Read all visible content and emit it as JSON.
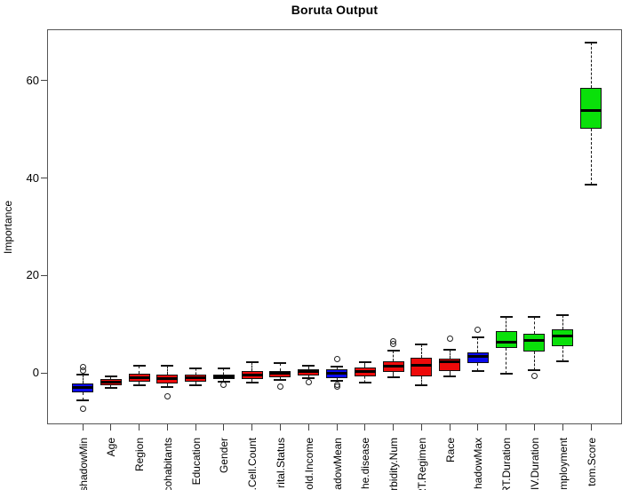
{
  "chart_data": {
    "type": "boxplot",
    "title": "Boruta Output",
    "xlabel": "",
    "ylabel": "Importance",
    "yticks": [
      0,
      20,
      40,
      60
    ],
    "ylim": [
      -10.5,
      70.5
    ],
    "grid": false,
    "legend": "none",
    "colors": {
      "shadow": "#0a0aee",
      "rejected": "#ee0a0a",
      "confirmed": "#0ae00a",
      "axis": "#444444",
      "median": "#000000"
    },
    "boxes": [
      {
        "label": "shadowMin",
        "status": "shadow",
        "lo": -5.6,
        "q1": -4.0,
        "med": -3.0,
        "q3": -2.1,
        "hi": -0.3,
        "outliers": [
          1.3,
          0.6,
          -7.4
        ]
      },
      {
        "label": "Age",
        "status": "rejected",
        "lo": -3.1,
        "q1": -2.5,
        "med": -1.9,
        "q3": -1.3,
        "hi": -0.6,
        "outliers": []
      },
      {
        "label": "Region",
        "status": "rejected",
        "lo": -2.4,
        "q1": -1.8,
        "med": -0.9,
        "q3": -0.2,
        "hi": 1.6,
        "outliers": []
      },
      {
        "label": "cohabitants",
        "status": "rejected",
        "lo": -2.9,
        "q1": -2.1,
        "med": -1.1,
        "q3": -0.3,
        "hi": 1.6,
        "outliers": [
          -4.8
        ]
      },
      {
        "label": "Education",
        "status": "rejected",
        "lo": -2.4,
        "q1": -1.7,
        "med": -0.9,
        "q3": -0.3,
        "hi": 0.9,
        "outliers": []
      },
      {
        "label": "Gender",
        "status": "rejected",
        "lo": -1.8,
        "q1": -1.3,
        "med": -0.8,
        "q3": -0.3,
        "hi": 1.0,
        "outliers": [
          -2.4
        ]
      },
      {
        "label": ".Cell.Count",
        "status": "rejected",
        "lo": -2.0,
        "q1": -1.3,
        "med": -0.4,
        "q3": 0.4,
        "hi": 2.3,
        "outliers": []
      },
      {
        "label": "rital.Status",
        "status": "rejected",
        "lo": -1.4,
        "q1": -0.9,
        "med": -0.1,
        "q3": 0.5,
        "hi": 2.0,
        "outliers": [
          -2.7
        ]
      },
      {
        "label": "old.Income",
        "status": "rejected",
        "lo": -1.1,
        "q1": -0.5,
        "med": 0.3,
        "q3": 0.7,
        "hi": 1.6,
        "outliers": [
          -1.8
        ]
      },
      {
        "label": "adowMean",
        "status": "shadow",
        "lo": -1.5,
        "q1": -1.0,
        "med": 0.0,
        "q3": 0.7,
        "hi": 1.4,
        "outliers": [
          2.9,
          -2.4,
          -2.8
        ]
      },
      {
        "label": "he.disease",
        "status": "rejected",
        "lo": -2.0,
        "q1": -0.6,
        "med": 0.4,
        "q3": 1.2,
        "hi": 2.3,
        "outliers": []
      },
      {
        "label": "rbidity.Num",
        "status": "rejected",
        "lo": -0.9,
        "q1": 0.2,
        "med": 1.5,
        "q3": 2.5,
        "hi": 4.6,
        "outliers": [
          6.0,
          6.6
        ]
      },
      {
        "label": "RT.Regimen",
        "status": "rejected",
        "lo": -2.5,
        "q1": -0.7,
        "med": 1.6,
        "q3": 3.1,
        "hi": 5.8,
        "outliers": []
      },
      {
        "label": "Race",
        "status": "rejected",
        "lo": -0.6,
        "q1": 0.5,
        "med": 2.3,
        "q3": 2.9,
        "hi": 4.7,
        "outliers": [
          7.1
        ]
      },
      {
        "label": "hadowMax",
        "status": "shadow",
        "lo": 0.5,
        "q1": 2.0,
        "med": 3.4,
        "q3": 4.3,
        "hi": 7.4,
        "outliers": [
          8.9
        ]
      },
      {
        "label": "RT.Duration",
        "status": "confirmed",
        "lo": -0.2,
        "q1": 5.1,
        "med": 6.4,
        "q3": 8.7,
        "hi": 11.5,
        "outliers": []
      },
      {
        "label": "IV.Duration",
        "status": "confirmed",
        "lo": 0.6,
        "q1": 4.5,
        "med": 6.7,
        "q3": 8.0,
        "hi": 11.6,
        "outliers": [
          -0.5
        ]
      },
      {
        "label": "mployment",
        "status": "confirmed",
        "lo": 2.4,
        "q1": 5.5,
        "med": 7.6,
        "q3": 9.0,
        "hi": 11.9,
        "outliers": []
      },
      {
        "label": "tom.Score",
        "status": "confirmed",
        "lo": 38.7,
        "q1": 50.2,
        "med": 53.8,
        "q3": 58.5,
        "hi": 67.8,
        "outliers": []
      }
    ]
  }
}
